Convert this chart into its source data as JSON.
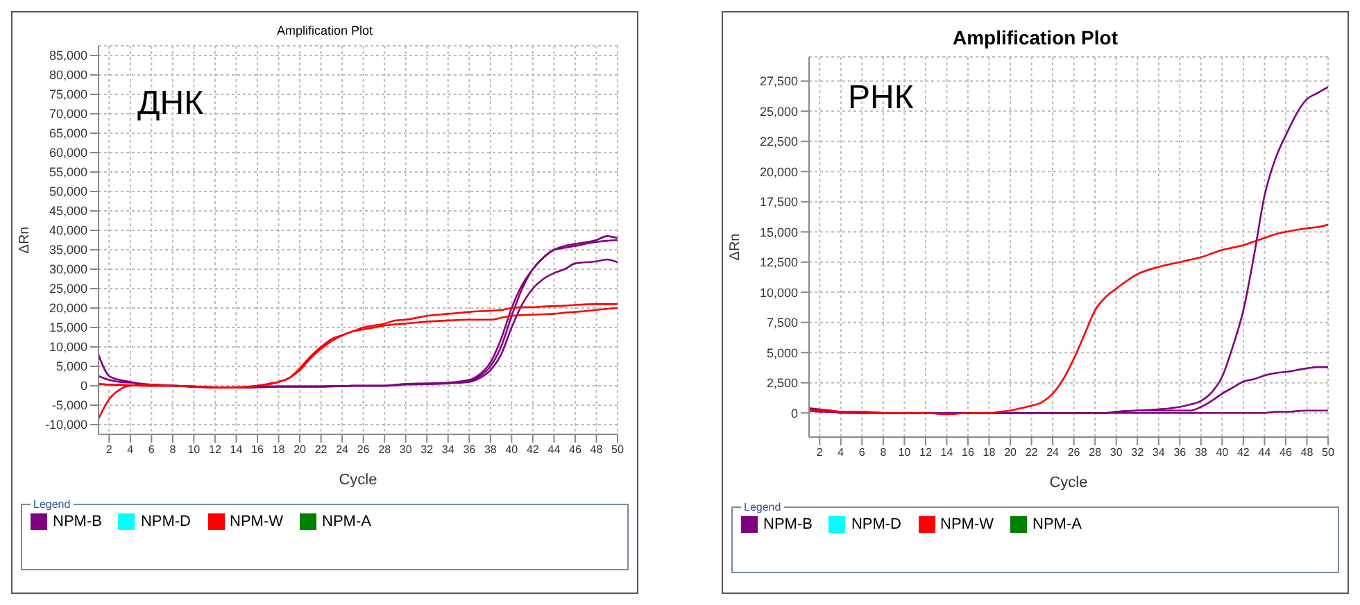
{
  "chart_data": [
    {
      "type": "line",
      "title": "Amplification Plot",
      "xlabel": "Cycle",
      "ylabel": "ΔRn",
      "legend_title": "Legend",
      "annotations": [
        "ДНК"
      ],
      "x": [
        1,
        2,
        3,
        4,
        6,
        8,
        10,
        12,
        14,
        16,
        17,
        18,
        19,
        20,
        21,
        22,
        23,
        24,
        25,
        26,
        27,
        28,
        29,
        30,
        32,
        34,
        36,
        37,
        38,
        39,
        40,
        41,
        42,
        43,
        44,
        45,
        46,
        48,
        49,
        50
      ],
      "xlim": [
        1,
        50
      ],
      "xticks": [
        2,
        4,
        6,
        8,
        10,
        12,
        14,
        16,
        18,
        20,
        22,
        24,
        26,
        28,
        30,
        32,
        34,
        36,
        38,
        40,
        42,
        44,
        46,
        48,
        50
      ],
      "ylim": [
        -12500,
        87500
      ],
      "yticks": [
        {
          "value": -10000,
          "label": "-10,000"
        },
        {
          "value": -5000,
          "label": "-5,000"
        },
        0,
        {
          "value": 5000,
          "label": "5,000"
        },
        {
          "value": 10000,
          "label": "10,000"
        },
        {
          "value": 15000,
          "label": "15,000"
        },
        {
          "value": 20000,
          "label": "20,000"
        },
        {
          "value": 25000,
          "label": "25,000"
        },
        {
          "value": 30000,
          "label": "30,000"
        },
        {
          "value": 35000,
          "label": "35,000"
        },
        {
          "value": 40000,
          "label": "40,000"
        },
        {
          "value": 45000,
          "label": "45,000"
        },
        {
          "value": 50000,
          "label": "50,000"
        },
        {
          "value": 55000,
          "label": "55,000"
        },
        {
          "value": 60000,
          "label": "60,000"
        },
        {
          "value": 65000,
          "label": "65,000"
        },
        {
          "value": 70000,
          "label": "70,000"
        },
        {
          "value": 75000,
          "label": "75,000"
        },
        {
          "value": 80000,
          "label": "80,000"
        },
        {
          "value": 85000,
          "label": "85,000"
        }
      ],
      "grid": true,
      "legend": "bottom",
      "marker": "none",
      "line_style": "solid",
      "series": [
        {
          "name": "NPM-B",
          "color": "#800080",
          "values": [
            8000,
            2500,
            1500,
            1000,
            0,
            0,
            -300,
            -500,
            -500,
            -300,
            -200,
            -200,
            -200,
            -200,
            -200,
            -200,
            -200,
            -100,
            0,
            0,
            0,
            0,
            200,
            500,
            600,
            800,
            1500,
            3000,
            6000,
            12000,
            20000,
            26000,
            30000,
            33000,
            35000,
            36000,
            36500,
            37500,
            38500,
            38000
          ]
        },
        {
          "color": "#800080",
          "values": [
            2500,
            1500,
            1000,
            800,
            300,
            0,
            -200,
            -400,
            -400,
            -300,
            -200,
            -200,
            -200,
            -200,
            -200,
            -200,
            -100,
            -100,
            0,
            0,
            0,
            0,
            200,
            400,
            500,
            700,
            1200,
            2500,
            5000,
            10000,
            18000,
            25000,
            30000,
            33000,
            35000,
            35500,
            36000,
            37000,
            37300,
            37500
          ]
        },
        {
          "color": "#800080",
          "values": [
            500,
            300,
            200,
            100,
            0,
            0,
            -200,
            -400,
            -500,
            -400,
            -300,
            -200,
            -200,
            -200,
            -200,
            -200,
            -100,
            -100,
            0,
            0,
            0,
            0,
            100,
            300,
            400,
            600,
            1000,
            2000,
            4000,
            8000,
            15000,
            21000,
            25000,
            27500,
            29000,
            30000,
            31500,
            32000,
            32500,
            31800
          ]
        },
        {
          "name": "NPM-D",
          "color": "#00ffff",
          "values": [
            null,
            null,
            null,
            null,
            null,
            null,
            null,
            null,
            null,
            null,
            null,
            null,
            null,
            null,
            null,
            null,
            null,
            null,
            null,
            null,
            null,
            null,
            null,
            null,
            null,
            null,
            null,
            null,
            null,
            null,
            null,
            null,
            null,
            null,
            null,
            null,
            null,
            null,
            null,
            null
          ]
        },
        {
          "name": "NPM-W",
          "color": "#ff0000",
          "values": [
            -8500,
            -3500,
            -1000,
            0,
            300,
            0,
            -200,
            -500,
            -500,
            0,
            500,
            1000,
            2000,
            4000,
            7000,
            9500,
            11500,
            13000,
            14000,
            15000,
            15500,
            16000,
            16800,
            17000,
            18000,
            18500,
            19000,
            19200,
            19300,
            19500,
            20000,
            20200,
            20200,
            20400,
            20500,
            20600,
            20800,
            21000,
            21000,
            21000
          ]
        },
        {
          "color": "#ff0000",
          "values": [
            500,
            300,
            200,
            100,
            0,
            0,
            -200,
            -400,
            -400,
            0,
            300,
            1000,
            2000,
            4500,
            7500,
            10000,
            12000,
            13000,
            14000,
            14500,
            15000,
            15500,
            15800,
            16000,
            16500,
            16800,
            17000,
            17000,
            17000,
            17500,
            18000,
            18200,
            18300,
            18400,
            18500,
            18800,
            19000,
            19500,
            19800,
            20000
          ]
        },
        {
          "name": "NPM-A",
          "color": "#008000",
          "values": [
            null,
            null,
            null,
            null,
            null,
            null,
            null,
            null,
            null,
            null,
            null,
            null,
            null,
            null,
            null,
            null,
            null,
            null,
            null,
            null,
            null,
            null,
            null,
            null,
            null,
            null,
            null,
            null,
            null,
            null,
            null,
            null,
            null,
            null,
            null,
            null,
            null,
            null,
            null,
            null
          ]
        }
      ]
    },
    {
      "type": "line",
      "title": "Amplification Plot",
      "xlabel": "Cycle",
      "ylabel": "ΔRn",
      "legend_title": "Legend",
      "annotations": [
        "РНК"
      ],
      "x": [
        1,
        2,
        3,
        4,
        6,
        8,
        10,
        12,
        14,
        16,
        17,
        18,
        19,
        20,
        21,
        22,
        23,
        24,
        25,
        26,
        27,
        28,
        29,
        30,
        32,
        34,
        36,
        37,
        38,
        39,
        40,
        41,
        42,
        43,
        44,
        45,
        46,
        48,
        49,
        50
      ],
      "xlim": [
        1,
        50
      ],
      "xticks": [
        2,
        4,
        6,
        8,
        10,
        12,
        14,
        16,
        18,
        20,
        22,
        24,
        26,
        28,
        30,
        32,
        34,
        36,
        38,
        40,
        42,
        44,
        46,
        48,
        50
      ],
      "ylim": [
        -2000,
        29500
      ],
      "yticks": [
        0,
        {
          "value": 2500,
          "label": "2,500"
        },
        {
          "value": 5000,
          "label": "5,000"
        },
        {
          "value": 7500,
          "label": "7,500"
        },
        {
          "value": 10000,
          "label": "10,000"
        },
        {
          "value": 12500,
          "label": "12,500"
        },
        {
          "value": 15000,
          "label": "15,000"
        },
        {
          "value": 17500,
          "label": "17,500"
        },
        {
          "value": 20000,
          "label": "20,000"
        },
        {
          "value": 22500,
          "label": "22,500"
        },
        {
          "value": 25000,
          "label": "25,000"
        },
        {
          "value": 27500,
          "label": "27,500"
        }
      ],
      "grid": true,
      "legend": "bottom",
      "marker": "none",
      "line_style": "solid",
      "series": [
        {
          "name": "NPM-B",
          "color": "#800080",
          "values": [
            400,
            300,
            200,
            100,
            100,
            0,
            0,
            0,
            -100,
            0,
            0,
            0,
            0,
            0,
            0,
            0,
            0,
            0,
            0,
            0,
            0,
            0,
            0,
            100,
            200,
            300,
            500,
            700,
            1000,
            1700,
            3000,
            5500,
            8500,
            13000,
            18000,
            21000,
            23000,
            26000,
            26500,
            27000
          ]
        },
        {
          "color": "#800080",
          "values": [
            300,
            200,
            100,
            100,
            0,
            0,
            0,
            0,
            0,
            0,
            0,
            0,
            0,
            0,
            0,
            0,
            0,
            0,
            0,
            0,
            0,
            0,
            0,
            100,
            200,
            200,
            200,
            200,
            500,
            1000,
            1600,
            2100,
            2600,
            2800,
            3100,
            3300,
            3400,
            3700,
            3800,
            3800
          ]
        },
        {
          "color": "#800080",
          "values": [
            200,
            100,
            100,
            0,
            0,
            0,
            0,
            0,
            0,
            0,
            0,
            0,
            0,
            0,
            0,
            0,
            0,
            0,
            0,
            0,
            0,
            0,
            0,
            0,
            0,
            0,
            0,
            0,
            0,
            0,
            0,
            0,
            0,
            0,
            0,
            100,
            100,
            200,
            200,
            200
          ]
        },
        {
          "name": "NPM-D",
          "color": "#00ffff",
          "values": [
            null,
            null,
            null,
            null,
            null,
            null,
            null,
            null,
            null,
            null,
            null,
            null,
            null,
            null,
            null,
            null,
            null,
            null,
            null,
            null,
            null,
            null,
            null,
            null,
            null,
            null,
            null,
            null,
            null,
            null,
            null,
            null,
            null,
            null,
            null,
            null,
            null,
            null,
            null,
            null
          ]
        },
        {
          "name": "NPM-W",
          "color": "#ff0000",
          "values": [
            300,
            200,
            200,
            100,
            100,
            0,
            0,
            0,
            -100,
            0,
            0,
            0,
            100,
            200,
            400,
            600,
            900,
            1600,
            2800,
            4500,
            6500,
            8500,
            9600,
            10300,
            11500,
            12100,
            12500,
            12700,
            12900,
            13200,
            13500,
            13700,
            13900,
            14200,
            14500,
            14800,
            15000,
            15300,
            15400,
            15600
          ]
        },
        {
          "name": "NPM-A",
          "color": "#008000",
          "values": [
            null,
            null,
            null,
            null,
            null,
            null,
            null,
            null,
            null,
            null,
            null,
            null,
            null,
            null,
            null,
            null,
            null,
            null,
            null,
            null,
            null,
            null,
            null,
            null,
            null,
            null,
            null,
            null,
            null,
            null,
            null,
            null,
            null,
            null,
            null,
            null,
            null,
            null,
            null,
            null
          ]
        }
      ]
    }
  ]
}
